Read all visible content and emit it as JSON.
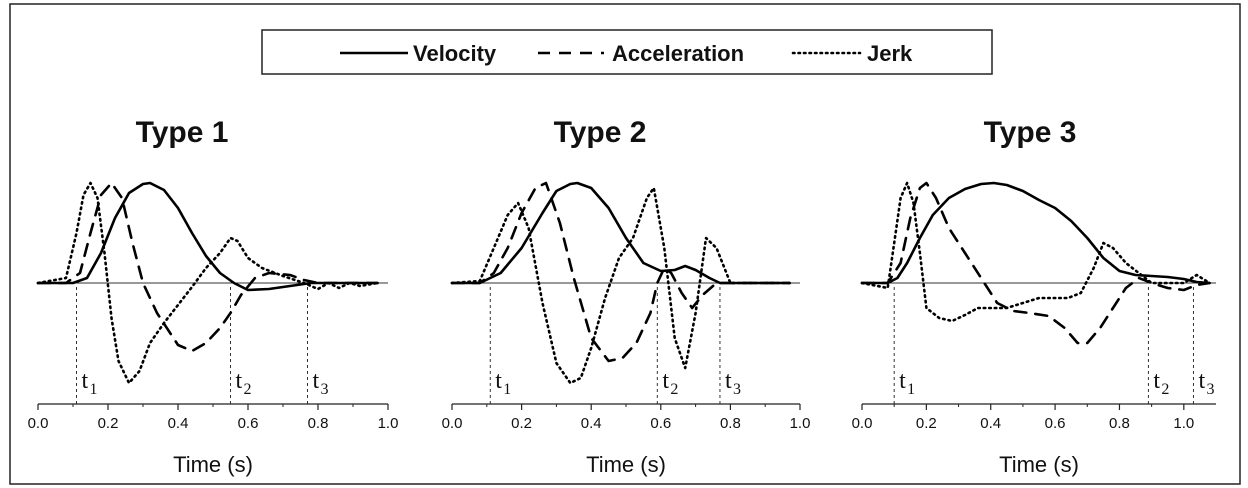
{
  "legend": {
    "entries": [
      {
        "label": "Velocity",
        "style": "solid"
      },
      {
        "label": "Acceleration",
        "style": "dashed"
      },
      {
        "label": "Jerk",
        "style": "dotted"
      }
    ]
  },
  "colors": {
    "line": "#000000",
    "background": "#ffffff",
    "border": "#333333"
  },
  "chart_data": [
    {
      "type": "line",
      "title": "Type 1",
      "xlabel": "Time (s)",
      "xlim": [
        0.0,
        1.0
      ],
      "xticks": [
        "0.0",
        "0.2",
        "0.4",
        "0.6",
        "0.8",
        "1.0"
      ],
      "markers": [
        {
          "label": "t",
          "sub": "1",
          "x": 0.11
        },
        {
          "label": "t",
          "sub": "2",
          "x": 0.55
        },
        {
          "label": "t",
          "sub": "3",
          "x": 0.77
        }
      ],
      "series": [
        {
          "name": "Velocity",
          "style": "solid",
          "x": [
            0.0,
            0.1,
            0.14,
            0.18,
            0.22,
            0.26,
            0.3,
            0.32,
            0.36,
            0.4,
            0.44,
            0.48,
            0.52,
            0.56,
            0.6,
            0.66,
            0.72,
            0.78,
            0.85,
            0.97
          ],
          "y": [
            0,
            0,
            0.05,
            0.3,
            0.65,
            0.9,
            0.99,
            1.0,
            0.93,
            0.75,
            0.5,
            0.27,
            0.1,
            0,
            -0.07,
            -0.06,
            -0.03,
            0,
            0,
            0
          ]
        },
        {
          "name": "Acceleration",
          "style": "dashed",
          "x": [
            0.0,
            0.08,
            0.12,
            0.15,
            0.18,
            0.21,
            0.24,
            0.27,
            0.3,
            0.34,
            0.4,
            0.44,
            0.48,
            0.52,
            0.55,
            0.58,
            0.62,
            0.66,
            0.72,
            0.76,
            0.8,
            0.85,
            0.97
          ],
          "y": [
            0,
            0,
            0.1,
            0.5,
            0.88,
            1.0,
            0.85,
            0.4,
            0.0,
            -0.3,
            -0.62,
            -0.68,
            -0.6,
            -0.45,
            -0.3,
            -0.12,
            0.05,
            0.1,
            0.08,
            0.03,
            0,
            0,
            0
          ]
        },
        {
          "name": "Jerk",
          "style": "dotted",
          "x": [
            0.0,
            0.08,
            0.11,
            0.13,
            0.15,
            0.17,
            0.19,
            0.21,
            0.23,
            0.26,
            0.29,
            0.32,
            0.36,
            0.4,
            0.44,
            0.48,
            0.52,
            0.55,
            0.57,
            0.6,
            0.64,
            0.7,
            0.76,
            0.8,
            0.83,
            0.86,
            0.89,
            0.92,
            0.97
          ],
          "y": [
            0,
            0.05,
            0.5,
            0.88,
            1.0,
            0.85,
            0.3,
            -0.35,
            -0.78,
            -1.0,
            -0.88,
            -0.6,
            -0.4,
            -0.22,
            -0.04,
            0.15,
            0.3,
            0.45,
            0.42,
            0.25,
            0.15,
            0.07,
            0.0,
            -0.06,
            0.0,
            -0.05,
            0.0,
            -0.03,
            0
          ]
        }
      ]
    },
    {
      "type": "line",
      "title": "Type 2",
      "xlabel": "Time (s)",
      "xlim": [
        0.0,
        1.0
      ],
      "xticks": [
        "0.0",
        "0.2",
        "0.4",
        "0.6",
        "0.8",
        "1.0"
      ],
      "markers": [
        {
          "label": "t",
          "sub": "1",
          "x": 0.11
        },
        {
          "label": "t",
          "sub": "2",
          "x": 0.59
        },
        {
          "label": "t",
          "sub": "3",
          "x": 0.77
        }
      ],
      "series": [
        {
          "name": "Velocity",
          "style": "solid",
          "x": [
            0.0,
            0.08,
            0.14,
            0.2,
            0.26,
            0.3,
            0.34,
            0.36,
            0.4,
            0.45,
            0.5,
            0.55,
            0.6,
            0.64,
            0.67,
            0.7,
            0.74,
            0.77,
            0.82,
            0.97
          ],
          "y": [
            0,
            0,
            0.1,
            0.35,
            0.7,
            0.92,
            0.99,
            1.0,
            0.95,
            0.75,
            0.45,
            0.2,
            0.12,
            0.13,
            0.17,
            0.13,
            0.05,
            0,
            0,
            0
          ]
        },
        {
          "name": "Acceleration",
          "style": "dashed",
          "x": [
            0.0,
            0.08,
            0.12,
            0.16,
            0.2,
            0.24,
            0.27,
            0.31,
            0.35,
            0.4,
            0.45,
            0.49,
            0.53,
            0.57,
            0.59,
            0.61,
            0.63,
            0.66,
            0.69,
            0.72,
            0.76,
            0.8,
            0.97
          ],
          "y": [
            0,
            0,
            0.1,
            0.35,
            0.7,
            0.95,
            1.0,
            0.6,
            0.05,
            -0.55,
            -0.78,
            -0.75,
            -0.6,
            -0.3,
            0,
            0.15,
            0.1,
            -0.1,
            -0.25,
            -0.12,
            0,
            0,
            0
          ]
        },
        {
          "name": "Jerk",
          "style": "dotted",
          "x": [
            0.0,
            0.08,
            0.12,
            0.16,
            0.19,
            0.22,
            0.26,
            0.3,
            0.34,
            0.37,
            0.4,
            0.44,
            0.48,
            0.52,
            0.56,
            0.58,
            0.61,
            0.64,
            0.67,
            0.7,
            0.73,
            0.76,
            0.8,
            0.97
          ],
          "y": [
            0,
            0.02,
            0.35,
            0.68,
            0.8,
            0.55,
            -0.2,
            -0.8,
            -1.0,
            -0.95,
            -0.65,
            -0.15,
            0.25,
            0.45,
            0.85,
            0.95,
            0.35,
            -0.55,
            -0.85,
            -0.3,
            0.45,
            0.35,
            0,
            0
          ]
        }
      ]
    },
    {
      "type": "line",
      "title": "Type 3",
      "xlabel": "Time (s)",
      "xlim": [
        0.0,
        1.1
      ],
      "xticks": [
        "0.0",
        "0.2",
        "0.4",
        "0.6",
        "0.8",
        "1.0"
      ],
      "markers": [
        {
          "label": "t",
          "sub": "1",
          "x": 0.1
        },
        {
          "label": "t",
          "sub": "2",
          "x": 0.89
        },
        {
          "label": "t",
          "sub": "3",
          "x": 1.03
        }
      ],
      "series": [
        {
          "name": "Velocity",
          "style": "solid",
          "x": [
            0.0,
            0.08,
            0.11,
            0.14,
            0.18,
            0.22,
            0.27,
            0.32,
            0.37,
            0.41,
            0.45,
            0.5,
            0.55,
            0.6,
            0.65,
            0.7,
            0.75,
            0.8,
            0.85,
            0.9,
            0.95,
            1.0,
            1.04,
            1.08
          ],
          "y": [
            0,
            0,
            0.05,
            0.2,
            0.45,
            0.68,
            0.85,
            0.94,
            0.99,
            1.0,
            0.98,
            0.92,
            0.83,
            0.75,
            0.62,
            0.45,
            0.25,
            0.12,
            0.08,
            0.07,
            0.06,
            0.04,
            0.01,
            0
          ]
        },
        {
          "name": "Acceleration",
          "style": "dashed",
          "x": [
            0.0,
            0.08,
            0.12,
            0.15,
            0.18,
            0.2,
            0.23,
            0.27,
            0.32,
            0.37,
            0.42,
            0.47,
            0.52,
            0.58,
            0.63,
            0.67,
            0.7,
            0.74,
            0.78,
            0.82,
            0.86,
            0.9,
            0.95,
            1.0,
            1.04,
            1.08
          ],
          "y": [
            0,
            0,
            0.2,
            0.65,
            0.95,
            1.0,
            0.85,
            0.55,
            0.3,
            0.05,
            -0.2,
            -0.28,
            -0.3,
            -0.33,
            -0.45,
            -0.6,
            -0.6,
            -0.45,
            -0.25,
            -0.05,
            0.05,
            0,
            -0.05,
            -0.07,
            -0.02,
            0
          ]
        },
        {
          "name": "Jerk",
          "style": "dotted",
          "x": [
            0.0,
            0.08,
            0.1,
            0.12,
            0.14,
            0.16,
            0.18,
            0.2,
            0.24,
            0.28,
            0.32,
            0.36,
            0.4,
            0.45,
            0.5,
            0.55,
            0.6,
            0.64,
            0.68,
            0.72,
            0.75,
            0.78,
            0.82,
            0.86,
            0.9,
            0.95,
            1.0,
            1.04,
            1.08
          ],
          "y": [
            0,
            -0.05,
            0.4,
            0.85,
            1.0,
            0.8,
            0.3,
            -0.25,
            -0.35,
            -0.38,
            -0.32,
            -0.25,
            -0.25,
            -0.25,
            -0.2,
            -0.15,
            -0.15,
            -0.15,
            -0.1,
            0.15,
            0.4,
            0.35,
            0.2,
            0.1,
            0.0,
            0.0,
            0.0,
            0.08,
            0
          ]
        }
      ]
    }
  ]
}
